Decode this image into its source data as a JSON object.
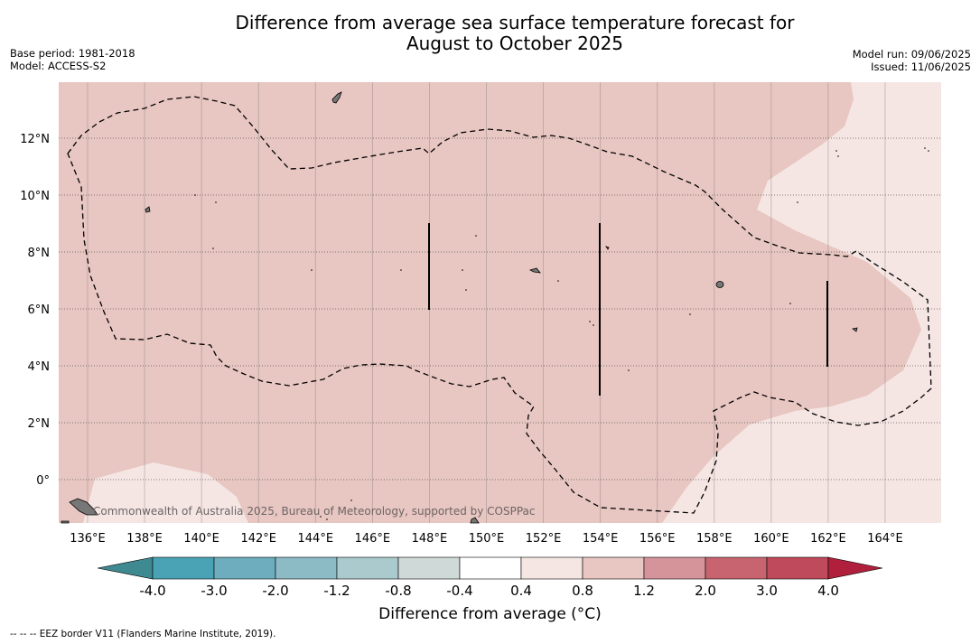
{
  "header": {
    "title_line1": "Difference from average sea surface temperature forecast for",
    "title_line2": "August to October 2025",
    "base_period": "Base period: 1981-2018",
    "model": "Model: ACCESS-S2",
    "model_run": "Model run: 09/06/2025",
    "issued": "Issued: 11/06/2025"
  },
  "map": {
    "lon_labels": [
      "136°E",
      "138°E",
      "140°E",
      "142°E",
      "144°E",
      "146°E",
      "148°E",
      "150°E",
      "152°E",
      "154°E",
      "156°E",
      "158°E",
      "160°E",
      "162°E",
      "164°E"
    ],
    "lat_labels": [
      "12°N",
      "10°N",
      "8°N",
      "6°N",
      "4°N",
      "2°N",
      "0°"
    ],
    "copyright": "Commonwealth of Australia 2025, Bureau of Meteorology, supported by COSPPac",
    "fill_colors": {
      "band_0_4_0_8": "#f5e6e4",
      "band_0_8_1_2": "#e8c6c1"
    }
  },
  "colorbar": {
    "tick_labels": [
      "-4.0",
      "-3.0",
      "-2.0",
      "-1.2",
      "-0.8",
      "-0.4",
      "0.4",
      "0.8",
      "1.2",
      "2.0",
      "3.0",
      "4.0"
    ],
    "colors": [
      "#4aa3b5",
      "#6dadbd",
      "#8cbbc5",
      "#abcacd",
      "#cfd9d8",
      "#ffffff",
      "#f5e6e4",
      "#e8c6c1",
      "#d5939a",
      "#c76470",
      "#bf4a5b"
    ],
    "under_color": "#3f8991",
    "over_color": "#b01f3b",
    "label": "Difference from average (°C)"
  },
  "footnote": "--  --  -- EEZ border V11 (Flanders Marine Institute, 2019)."
}
